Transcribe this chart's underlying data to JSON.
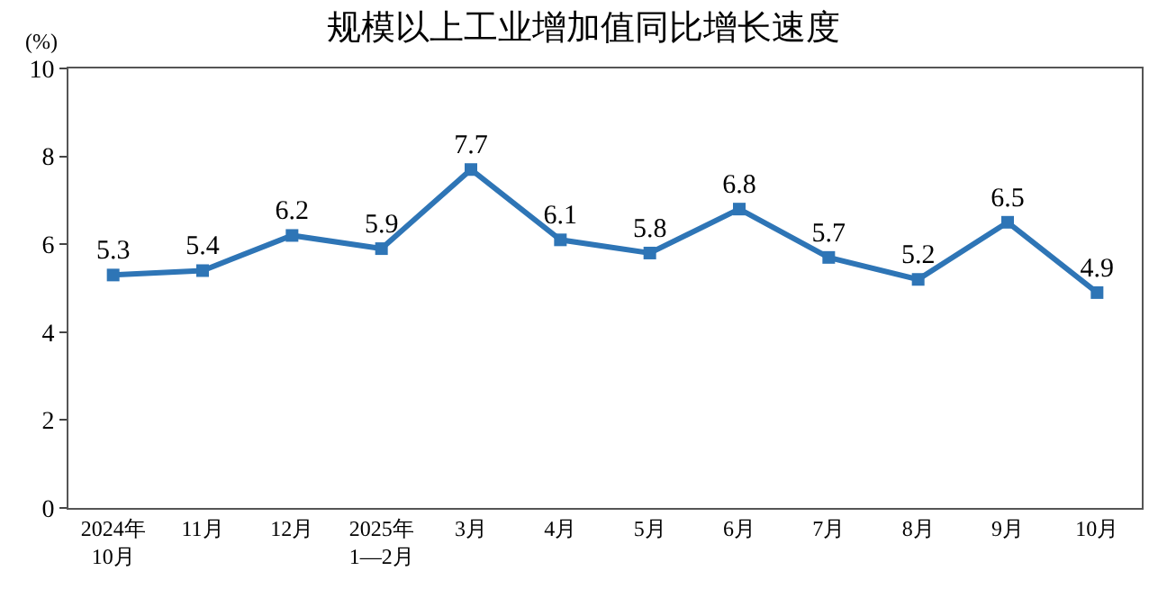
{
  "chart_data": {
    "type": "line",
    "title": "规模以上工业增加值同比增长速度",
    "ylabel": "(%)",
    "categories": [
      "2024年\n10月",
      "11月",
      "12月",
      "2025年\n1—2月",
      "3月",
      "4月",
      "5月",
      "6月",
      "7月",
      "8月",
      "9月",
      "10月"
    ],
    "series": [
      {
        "color": "#2e75b6",
        "values": [
          5.3,
          5.4,
          6.2,
          5.9,
          7.7,
          6.1,
          5.8,
          6.8,
          5.7,
          5.2,
          6.5,
          4.9
        ]
      }
    ],
    "ylim": [
      0,
      10
    ],
    "yticks": [
      0,
      2,
      4,
      6,
      8,
      10
    ],
    "grid": false,
    "marker": "square",
    "line_style": "solid",
    "data_labels": true
  }
}
